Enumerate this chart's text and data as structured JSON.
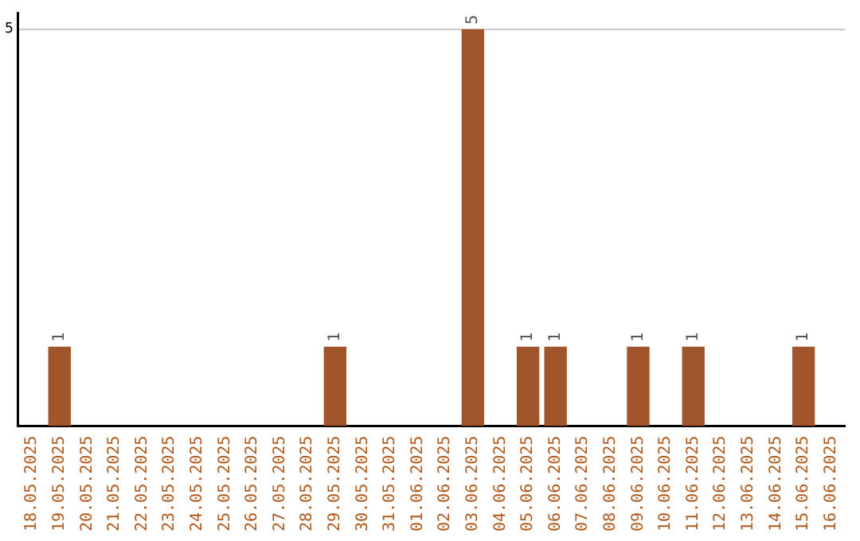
{
  "chart_data": {
    "type": "bar",
    "categories": [
      "18.05.2025",
      "19.05.2025",
      "20.05.2025",
      "21.05.2025",
      "22.05.2025",
      "23.05.2025",
      "24.05.2025",
      "25.05.2025",
      "26.05.2025",
      "27.05.2025",
      "28.05.2025",
      "29.05.2025",
      "30.05.2025",
      "31.05.2025",
      "01.06.2025",
      "02.06.2025",
      "03.06.2025",
      "04.06.2025",
      "05.06.2025",
      "06.06.2025",
      "07.06.2025",
      "08.06.2025",
      "09.06.2025",
      "10.06.2025",
      "11.06.2025",
      "12.06.2025",
      "13.06.2025",
      "14.06.2025",
      "15.06.2025",
      "16.06.2025"
    ],
    "values": [
      0,
      1,
      0,
      0,
      0,
      0,
      0,
      0,
      0,
      0,
      0,
      1,
      0,
      0,
      0,
      0,
      5,
      0,
      1,
      1,
      0,
      0,
      1,
      0,
      1,
      0,
      0,
      0,
      1,
      0
    ],
    "value_labels": [
      null,
      "1",
      null,
      null,
      null,
      null,
      null,
      null,
      null,
      null,
      null,
      "1",
      null,
      null,
      null,
      null,
      "5",
      null,
      "1",
      "1",
      null,
      null,
      "1",
      null,
      "1",
      null,
      null,
      null,
      "1",
      null
    ],
    "color": "#a0562a",
    "ylim": [
      0,
      5.2
    ],
    "yticks": [
      5
    ],
    "grid": "y",
    "legend": false
  }
}
